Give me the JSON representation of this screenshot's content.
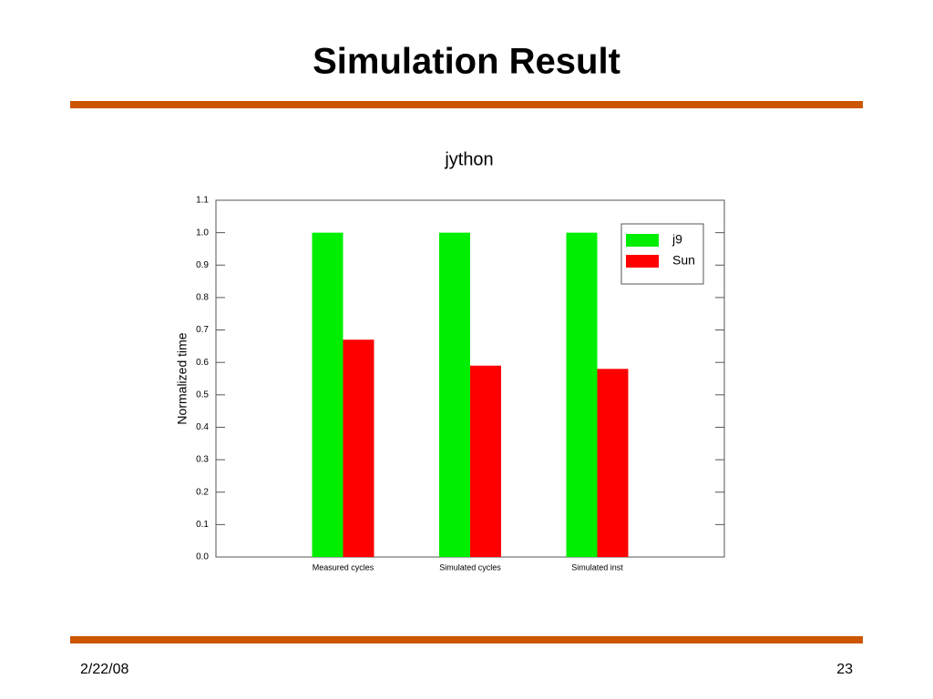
{
  "slide": {
    "title": "Simulation Result",
    "date": "2/22/08",
    "page": "23"
  },
  "chart_data": {
    "type": "bar",
    "title": "jython",
    "y_label": "Normalized time",
    "categories": [
      "Measured cycles",
      "Simulated cycles",
      "Simulated inst"
    ],
    "series": [
      {
        "name": "j9",
        "color": "#00ee00",
        "values": [
          1.0,
          1.0,
          1.0
        ]
      },
      {
        "name": "Sun",
        "color": "#ff0000",
        "values": [
          0.67,
          0.59,
          0.58
        ]
      }
    ],
    "ylim": [
      0,
      1.1
    ],
    "yticks": [
      {
        "value": 0,
        "label": "0.0"
      },
      0.1,
      0.2,
      0.3,
      0.4,
      0.5,
      0.6,
      0.7,
      0.8,
      0.9,
      {
        "value": 1,
        "label": "1.0"
      },
      1.1
    ],
    "legend": "upper right"
  }
}
